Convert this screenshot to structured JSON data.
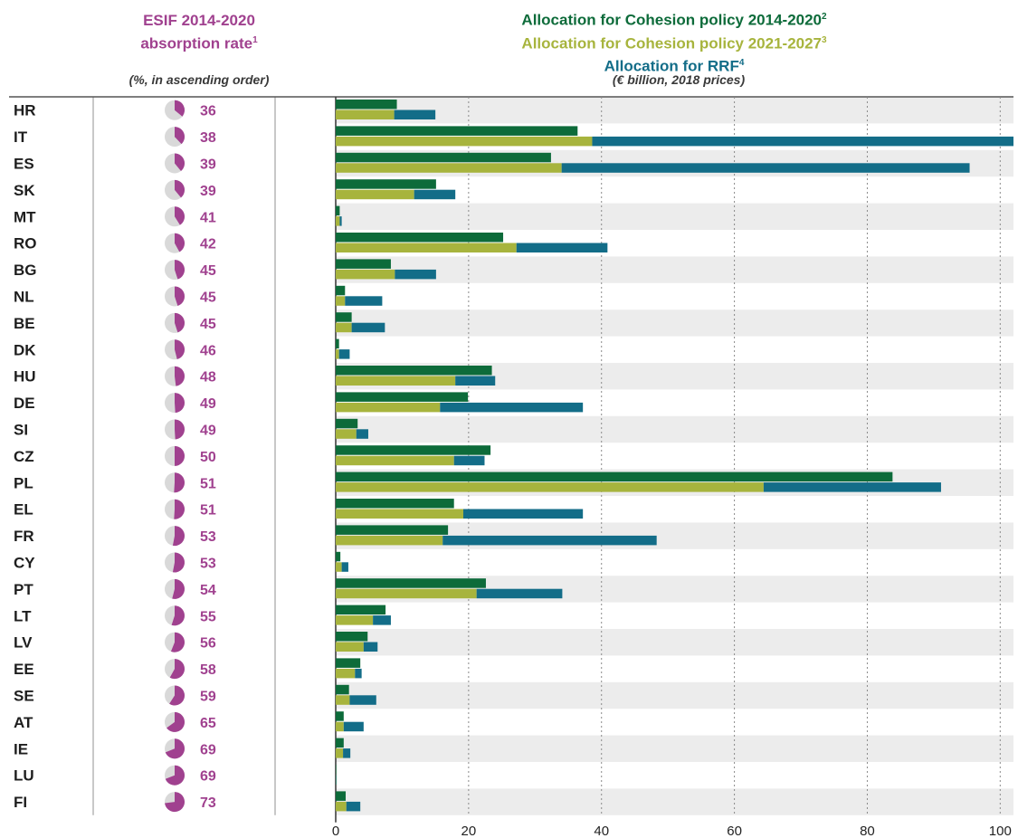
{
  "left_header": {
    "line1": "ESIF 2014-2020",
    "line2": "absorption rate",
    "note": "1",
    "subtitle": "(%, in ascending order)"
  },
  "right_header": {
    "series1_label": "Allocation for Cohesion policy 2014-2020",
    "series1_note": "2",
    "series2_label": "Allocation for Cohesion policy 2021-2027",
    "series2_note": "3",
    "series3_label": "Allocation for RRF",
    "series3_note": "4",
    "subtitle": "(€ billion, 2018 prices)"
  },
  "chart_data": {
    "type": "bar",
    "orientation": "horizontal",
    "grid": true,
    "xlim": [
      0,
      102
    ],
    "xticks": [
      0,
      20,
      40,
      60,
      80,
      100
    ],
    "colors": {
      "cohesion_2014_2020": "#0d6b3a",
      "cohesion_2021_2027": "#a7b43d",
      "rrf": "#136d88",
      "absorption": "#a0418f",
      "pie_bg": "#d9d9d9",
      "row_shade": "#ececec",
      "grid": "#8a8a8a"
    },
    "categories": [
      "HR",
      "IT",
      "ES",
      "SK",
      "MT",
      "RO",
      "BG",
      "NL",
      "BE",
      "DK",
      "HU",
      "DE",
      "SI",
      "CZ",
      "PL",
      "EL",
      "FR",
      "CY",
      "PT",
      "LT",
      "LV",
      "EE",
      "SE",
      "AT",
      "IE",
      "LU",
      "FI"
    ],
    "absorption_rate": [
      36,
      38,
      39,
      39,
      41,
      42,
      45,
      45,
      45,
      46,
      48,
      49,
      49,
      50,
      51,
      51,
      53,
      53,
      54,
      55,
      56,
      58,
      59,
      65,
      69,
      69,
      73
    ],
    "series": [
      {
        "name": "Allocation for Cohesion policy 2014-2020",
        "values": [
          9.2,
          36.4,
          32.4,
          15.1,
          0.6,
          25.2,
          8.3,
          1.4,
          2.4,
          0.5,
          23.5,
          19.9,
          3.3,
          23.3,
          83.8,
          17.8,
          16.9,
          0.7,
          22.6,
          7.5,
          4.8,
          3.7,
          2.0,
          1.2,
          1.2,
          0.04,
          1.5
        ]
      },
      {
        "name": "Allocation for Cohesion policy 2021-2027",
        "values": [
          8.8,
          38.6,
          34.0,
          11.8,
          0.6,
          27.2,
          8.9,
          1.4,
          2.4,
          0.5,
          18.0,
          15.7,
          3.1,
          17.8,
          64.4,
          19.2,
          16.1,
          0.9,
          21.2,
          5.6,
          4.2,
          2.9,
          2.1,
          1.2,
          1.1,
          0.04,
          1.6
        ]
      },
      {
        "name": "Allocation for RRF",
        "values": [
          6.2,
          63.4,
          61.4,
          6.2,
          0.3,
          13.7,
          6.2,
          5.6,
          5.0,
          1.6,
          6.0,
          21.5,
          1.8,
          4.6,
          26.7,
          18.0,
          32.2,
          1.0,
          12.9,
          2.7,
          2.1,
          1.0,
          4.0,
          3.0,
          1.1,
          0.1,
          2.1
        ]
      }
    ]
  }
}
